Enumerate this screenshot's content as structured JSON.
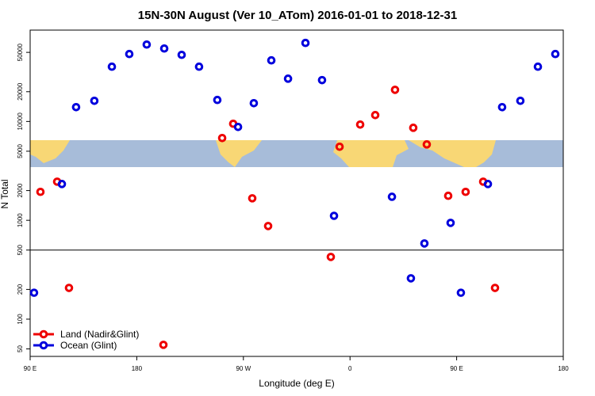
{
  "chart_data": {
    "type": "scatter",
    "title": "15N-30N August (Ver 10_ATom)   2016-01-01 to 2018-12-31",
    "x_label": "Longitude (deg E)",
    "y_label": "N Total",
    "log_y": true,
    "xlim": [
      90,
      540
    ],
    "ylim": [
      42,
      84000
    ],
    "xticks": [
      {
        "value": 90,
        "label": "90 E"
      },
      180,
      {
        "value": 270,
        "label": "90 W"
      },
      {
        "value": 360,
        "label": "0"
      },
      {
        "value": 450,
        "label": "90 E"
      },
      {
        "value": 540,
        "label": "180"
      }
    ],
    "yticks": [
      50,
      100,
      200,
      500,
      1000,
      2000,
      5000,
      10000,
      20000,
      50000
    ],
    "reference_line": 500,
    "legend_position": "bottom-left",
    "series": [
      {
        "name": "Land (Nadir&Glint)",
        "color": "#ee0000",
        "x": [
          98.7,
          112.8,
          122.8,
          202.5,
          252.1,
          261.4,
          277.5,
          290.9,
          343.8,
          351.2,
          368.6,
          381.3,
          398.0,
          413.4,
          424.8,
          442.9,
          457.6,
          472.4,
          482.4
        ],
        "values": [
          1940,
          2460,
          207,
          55,
          6800,
          9480,
          1670,
          875,
          426,
          5550,
          9300,
          11600,
          20900,
          8630,
          5860,
          1770,
          1940,
          2460,
          207
        ]
      },
      {
        "name": "Ocean (Glint)",
        "color": "#0000dd",
        "x": [
          93.3,
          116.8,
          128.8,
          144.2,
          159.0,
          173.7,
          188.4,
          203.2,
          217.9,
          232.6,
          248.0,
          265.5,
          278.8,
          293.6,
          307.7,
          322.4,
          336.4,
          346.5,
          395.4,
          411.4,
          422.8,
          444.9,
          453.6,
          476.4,
          488.4,
          503.8,
          518.6,
          533.3
        ],
        "values": [
          185,
          2330,
          13960,
          16180,
          35800,
          48100,
          60000,
          54700,
          47200,
          35800,
          16500,
          8800,
          15300,
          41500,
          27100,
          62300,
          26200,
          1110,
          1730,
          259,
          583,
          942,
          185,
          2330,
          13960,
          16180,
          35800,
          48100
        ]
      }
    ]
  }
}
